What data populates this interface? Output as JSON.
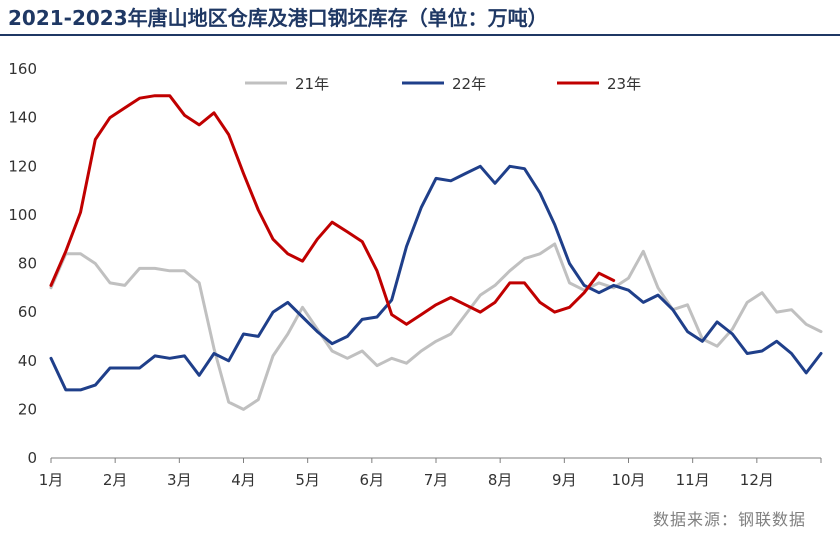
{
  "chart_data": {
    "type": "line",
    "title": "2021-2023年唐山地区仓库及港口钢坯库存（单位：万吨）",
    "source": "数据来源：钢联数据",
    "xlabel": "",
    "ylabel": "",
    "ylim": [
      0,
      160
    ],
    "yticks": [
      0,
      20,
      40,
      60,
      80,
      100,
      120,
      140,
      160
    ],
    "x_range": [
      0,
      12
    ],
    "x_ticks": [
      {
        "pos": 0,
        "label": "1月"
      },
      {
        "pos": 1,
        "label": "2月"
      },
      {
        "pos": 2,
        "label": "3月"
      },
      {
        "pos": 3,
        "label": "4月"
      },
      {
        "pos": 4,
        "label": "5月"
      },
      {
        "pos": 5,
        "label": "6月"
      },
      {
        "pos": 6,
        "label": "7月"
      },
      {
        "pos": 7,
        "label": "8月"
      },
      {
        "pos": 8,
        "label": "9月"
      },
      {
        "pos": 9,
        "label": "10月"
      },
      {
        "pos": 10,
        "label": "11月"
      },
      {
        "pos": 11,
        "label": "12月"
      }
    ],
    "grid": false,
    "legend_position": "top",
    "series": [
      {
        "name": "21年",
        "color": "#c0c0c0",
        "points": [
          [
            0.0,
            70
          ],
          [
            0.23,
            84
          ],
          [
            0.46,
            84
          ],
          [
            0.69,
            80
          ],
          [
            0.92,
            72
          ],
          [
            1.15,
            71
          ],
          [
            1.38,
            78
          ],
          [
            1.62,
            78
          ],
          [
            1.85,
            77
          ],
          [
            2.08,
            77
          ],
          [
            2.31,
            72
          ],
          [
            2.54,
            45
          ],
          [
            2.77,
            23
          ],
          [
            3.0,
            20
          ],
          [
            3.23,
            24
          ],
          [
            3.46,
            42
          ],
          [
            3.69,
            51
          ],
          [
            3.92,
            62
          ],
          [
            4.15,
            53
          ],
          [
            4.38,
            44
          ],
          [
            4.62,
            41
          ],
          [
            4.85,
            44
          ],
          [
            5.08,
            38
          ],
          [
            5.31,
            41
          ],
          [
            5.54,
            39
          ],
          [
            5.77,
            44
          ],
          [
            6.0,
            48
          ],
          [
            6.23,
            51
          ],
          [
            6.46,
            59
          ],
          [
            6.69,
            67
          ],
          [
            6.92,
            71
          ],
          [
            7.15,
            77
          ],
          [
            7.38,
            82
          ],
          [
            7.62,
            84
          ],
          [
            7.85,
            88
          ],
          [
            8.08,
            72
          ],
          [
            8.31,
            69
          ],
          [
            8.54,
            72
          ],
          [
            8.77,
            70
          ],
          [
            9.0,
            74
          ],
          [
            9.23,
            85
          ],
          [
            9.46,
            70
          ],
          [
            9.69,
            61
          ],
          [
            9.92,
            63
          ],
          [
            10.15,
            49
          ],
          [
            10.38,
            46
          ],
          [
            10.62,
            53
          ],
          [
            10.85,
            64
          ],
          [
            11.08,
            68
          ],
          [
            11.31,
            60
          ],
          [
            11.54,
            61
          ],
          [
            11.77,
            55
          ],
          [
            12.0,
            52
          ]
        ]
      },
      {
        "name": "22年",
        "color": "#1f3f8a",
        "points": [
          [
            0.0,
            41
          ],
          [
            0.23,
            28
          ],
          [
            0.46,
            28
          ],
          [
            0.69,
            30
          ],
          [
            0.92,
            37
          ],
          [
            1.15,
            37
          ],
          [
            1.38,
            37
          ],
          [
            1.62,
            42
          ],
          [
            1.85,
            41
          ],
          [
            2.08,
            42
          ],
          [
            2.31,
            34
          ],
          [
            2.54,
            43
          ],
          [
            2.77,
            40
          ],
          [
            3.0,
            51
          ],
          [
            3.23,
            50
          ],
          [
            3.46,
            60
          ],
          [
            3.69,
            64
          ],
          [
            3.92,
            58
          ],
          [
            4.15,
            52
          ],
          [
            4.38,
            47
          ],
          [
            4.62,
            50
          ],
          [
            4.85,
            57
          ],
          [
            5.08,
            58
          ],
          [
            5.31,
            65
          ],
          [
            5.54,
            87
          ],
          [
            5.77,
            103
          ],
          [
            6.0,
            115
          ],
          [
            6.23,
            114
          ],
          [
            6.46,
            117
          ],
          [
            6.69,
            120
          ],
          [
            6.92,
            113
          ],
          [
            7.15,
            120
          ],
          [
            7.38,
            119
          ],
          [
            7.62,
            109
          ],
          [
            7.85,
            96
          ],
          [
            8.08,
            80
          ],
          [
            8.31,
            71
          ],
          [
            8.54,
            68
          ],
          [
            8.77,
            71
          ],
          [
            9.0,
            69
          ],
          [
            9.23,
            64
          ],
          [
            9.46,
            67
          ],
          [
            9.69,
            61
          ],
          [
            9.92,
            52
          ],
          [
            10.15,
            48
          ],
          [
            10.38,
            56
          ],
          [
            10.62,
            51
          ],
          [
            10.85,
            43
          ],
          [
            11.08,
            44
          ],
          [
            11.31,
            48
          ],
          [
            11.54,
            43
          ],
          [
            11.77,
            35
          ],
          [
            12.0,
            43
          ]
        ]
      },
      {
        "name": "23年",
        "color": "#c00000",
        "points": [
          [
            0.0,
            71
          ],
          [
            0.23,
            85
          ],
          [
            0.46,
            101
          ],
          [
            0.69,
            131
          ],
          [
            0.92,
            140
          ],
          [
            1.15,
            144
          ],
          [
            1.38,
            148
          ],
          [
            1.62,
            149
          ],
          [
            1.85,
            149
          ],
          [
            2.08,
            141
          ],
          [
            2.31,
            137
          ],
          [
            2.54,
            142
          ],
          [
            2.77,
            133
          ],
          [
            3.0,
            117
          ],
          [
            3.23,
            102
          ],
          [
            3.46,
            90
          ],
          [
            3.69,
            84
          ],
          [
            3.92,
            81
          ],
          [
            4.15,
            90
          ],
          [
            4.38,
            97
          ],
          [
            4.62,
            93
          ],
          [
            4.85,
            89
          ],
          [
            5.08,
            77
          ],
          [
            5.31,
            59
          ],
          [
            5.54,
            55
          ],
          [
            5.77,
            59
          ],
          [
            6.0,
            63
          ],
          [
            6.23,
            66
          ],
          [
            6.46,
            63
          ],
          [
            6.69,
            60
          ],
          [
            6.92,
            64
          ],
          [
            7.15,
            72
          ],
          [
            7.38,
            72
          ],
          [
            7.62,
            64
          ],
          [
            7.85,
            60
          ],
          [
            8.08,
            62
          ],
          [
            8.31,
            68
          ],
          [
            8.54,
            76
          ],
          [
            8.77,
            73
          ]
        ]
      }
    ]
  }
}
